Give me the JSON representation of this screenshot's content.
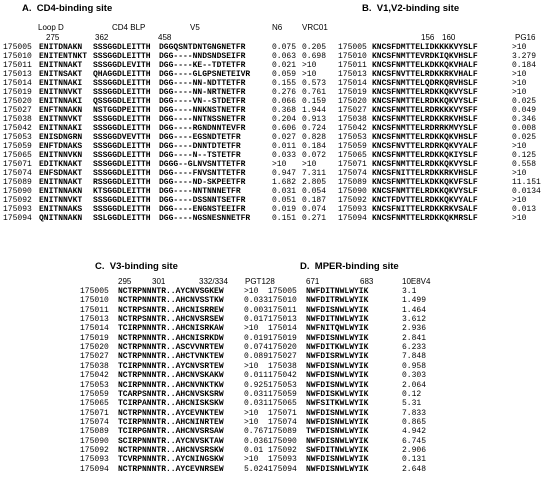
{
  "panels": [
    {
      "title": "A.  CD4-binding site",
      "regions": [
        "Loop D",
        "CD4 BLP",
        "V5"
      ],
      "positions": [
        "275",
        "362",
        "458"
      ],
      "antibodies": [
        "N6",
        "VRC01"
      ],
      "rows": [
        {
          "id": "175005",
          "seqs": [
            "ENITDNAKN",
            "SSSGGDLEITTH",
            "DGGQSNTDNTGNGNETFR"
          ],
          "values": [
            "0.075",
            "0.205"
          ]
        },
        {
          "id": "175010",
          "seqs": [
            "ENITENTNKT",
            "SSSGGDLEITTH",
            "DGG----NNDSNDSEIFR"
          ],
          "values": [
            "0.063",
            "0.698"
          ]
        },
        {
          "id": "175011",
          "seqs": [
            "ENITNNAKT",
            "SSSGGDLEVITH",
            "DGG----KE--TDTETFR"
          ],
          "values": [
            "0.021",
            ">10"
          ]
        },
        {
          "id": "175013",
          "seqs": [
            "ENITNSAKT",
            "QHAGGDLEITTH",
            "DGG----GLGPSNETEIVR"
          ],
          "values": [
            "0.059",
            ">10"
          ]
        },
        {
          "id": "175014",
          "seqs": [
            "ENITNNAKI",
            "SSSGGDLEITTH",
            "DGG----NN-NDTTETFR"
          ],
          "values": [
            "0.155",
            "0.573"
          ]
        },
        {
          "id": "175019",
          "seqs": [
            "ENITNNVKT",
            "SSSGGDLEITTH",
            "DGG----NN-NRTNETFR"
          ],
          "values": [
            "0.276",
            "0.761"
          ]
        },
        {
          "id": "175020",
          "seqs": [
            "ENITNNAKI",
            "QSSGGDLEITTH",
            "DGG----VN--STDETFR"
          ],
          "values": [
            "0.066",
            "0.159"
          ]
        },
        {
          "id": "175027",
          "seqs": [
            "ENFTNNAKN",
            "NSTGGDPEITTH",
            "DGG----NNKNSTNETFR"
          ],
          "values": [
            "0.368",
            "1.944"
          ]
        },
        {
          "id": "175038",
          "seqs": [
            "ENITNNVKT",
            "SSSGGDLEITTH",
            "DGG----NNTNSSNETFR"
          ],
          "values": [
            "0.204",
            "0.913"
          ]
        },
        {
          "id": "175042",
          "seqs": [
            "ENITNNAKI",
            "SSSGGDLEITTH",
            "DGG----RGNDNNTEVFR"
          ],
          "values": [
            "0.606",
            "0.724"
          ]
        },
        {
          "id": "175053",
          "seqs": [
            "ENISDNGRN",
            "SSSGGDVEVTTH",
            "DGG----EGSNDTETFR"
          ],
          "values": [
            "0.027",
            "0.828"
          ]
        },
        {
          "id": "175059",
          "seqs": [
            "ENFTDNAKS",
            "SSSGGDLEITTH",
            "DGG----DNNTDTETFR"
          ],
          "values": [
            "0.011",
            "0.184"
          ]
        },
        {
          "id": "175065",
          "seqs": [
            "ENITNNVKN",
            "SSSGGDLEITTH",
            "DGG----N--TSTETFR"
          ],
          "values": [
            "0.033",
            "0.072"
          ]
        },
        {
          "id": "175071",
          "seqs": [
            "EDITKNAKT",
            "SSSGGDLEITTH",
            "DGGG--GLNVSNTTETFR"
          ],
          "values": [
            ">10",
            ">10"
          ]
        },
        {
          "id": "175074",
          "seqs": [
            "ENFSDNAKT",
            "SSSGGDLEITTH",
            "DGG----FNVSNTTETFR"
          ],
          "values": [
            "0.947",
            "7.311"
          ]
        },
        {
          "id": "175089",
          "seqs": [
            "ENITNNAKT",
            "RSSGGDLEITTH",
            "DGG----ND-SKPEETFR"
          ],
          "values": [
            "1.682",
            "2.805"
          ]
        },
        {
          "id": "175090",
          "seqs": [
            "ENITNNAKN",
            "KTSGGDLEITTH",
            "DGG----NNTNNNETFR"
          ],
          "values": [
            "0.031",
            "0.054"
          ]
        },
        {
          "id": "175092",
          "seqs": [
            "ENITNNVKT",
            "SSSGGDLEITTH",
            "DGG----DSSNNTSETFR"
          ],
          "values": [
            "0.051",
            "0.187"
          ]
        },
        {
          "id": "175093",
          "seqs": [
            "ENITNNAKS",
            "SSSGGDLEITTH",
            "DGG----ENGNSTEEIFR"
          ],
          "values": [
            "0.019",
            "0.074"
          ]
        },
        {
          "id": "175094",
          "seqs": [
            "QNITNNAKN",
            "SSLGGDLEITTH",
            "DGG----NGSNESNNETFR"
          ],
          "values": [
            "0.151",
            "0.271"
          ]
        }
      ]
    },
    {
      "title": "B.  V1,V2-binding site",
      "positions": [
        "156",
        "160"
      ],
      "antibodies": [
        "PG16"
      ],
      "rows": [
        {
          "id": "175005",
          "seqs": [
            "KNCSFDMTTELIDKKKKVYSLF"
          ],
          "values": [
            ">10"
          ]
        },
        {
          "id": "175010",
          "seqs": [
            "KNCSFNMTTEVRDKIQKVHSLF"
          ],
          "values": [
            "3.279"
          ]
        },
        {
          "id": "175011",
          "seqs": [
            "KNCSFNMTTELKDKKQKVHALF"
          ],
          "values": [
            "0.184"
          ]
        },
        {
          "id": "175013",
          "seqs": [
            "KNCSFNVTTELRDKKRKVHALF"
          ],
          "values": [
            ">10"
          ]
        },
        {
          "id": "175014",
          "seqs": [
            "KNCSFNMTTELQDRKQRVHSLF"
          ],
          "values": [
            ">10"
          ]
        },
        {
          "id": "175019",
          "seqs": [
            "KNCSFNMTTELRDKKQKVYSLF"
          ],
          "values": [
            ">10"
          ]
        },
        {
          "id": "175020",
          "seqs": [
            "KNCSFNMTTELRDKKQKVYSLF"
          ],
          "values": [
            "0.025"
          ]
        },
        {
          "id": "175027",
          "seqs": [
            "KNCSFNMTTELRDRKKKVYSFF"
          ],
          "values": [
            "0.049"
          ]
        },
        {
          "id": "175038",
          "seqs": [
            "KNCSFNMTTELRDKKRKVHSLF"
          ],
          "values": [
            "0.346"
          ]
        },
        {
          "id": "175042",
          "seqs": [
            "KNCSFNMTTELRDRRKMVYSLF"
          ],
          "values": [
            "0.008"
          ]
        },
        {
          "id": "175053",
          "seqs": [
            "KNCSFNMTTELRDKKQKVHSLF"
          ],
          "values": [
            "0.025"
          ]
        },
        {
          "id": "175059",
          "seqs": [
            "KNCSFNVTTELRDRKQKVYALF"
          ],
          "values": [
            ">10"
          ]
        },
        {
          "id": "175065",
          "seqs": [
            "KNCSFNMTTELRDKKQKIYSLF"
          ],
          "values": [
            "0.125"
          ]
        },
        {
          "id": "175071",
          "seqs": [
            "KNCSFNMTTELRDKKQKVYSLF"
          ],
          "values": [
            "0.558"
          ]
        },
        {
          "id": "175074",
          "seqs": [
            "KNCSFNITTELRDKKRKVHSLF"
          ],
          "values": [
            ">10"
          ]
        },
        {
          "id": "175089",
          "seqs": [
            "KNCSFNMTTELKDKKQKVFSLF"
          ],
          "values": [
            "11.151"
          ]
        },
        {
          "id": "175090",
          "seqs": [
            "KNCSFNMTTELRDKKQKVYSLF"
          ],
          "values": [
            "0.0134"
          ]
        },
        {
          "id": "175092",
          "seqs": [
            "KNCTFDVTTELRDKKQKVYALF"
          ],
          "values": [
            ">10"
          ]
        },
        {
          "id": "175093",
          "seqs": [
            "KNCSFNITTELRDKKRKVSALF"
          ],
          "values": [
            "0.013"
          ]
        },
        {
          "id": "175094",
          "seqs": [
            "KNCSFNMTTELRDKKQKMRSLF"
          ],
          "values": [
            ">10"
          ]
        }
      ]
    },
    {
      "title": "C.  V3-binding site",
      "positions": [
        "295",
        "301",
        "332/334"
      ],
      "antibodies": [
        "PGT128"
      ],
      "rows": [
        {
          "id": "175005",
          "seqs": [
            "NCTRPNNNTR..AYCNVSGKEW"
          ],
          "values": [
            ">10"
          ]
        },
        {
          "id": "175010",
          "seqs": [
            "NCTRPNNNTR..AHCNVSSTKW"
          ],
          "values": [
            "0.033"
          ]
        },
        {
          "id": "175011",
          "seqs": [
            "NCTRPSNNTR..AHCNISRREW"
          ],
          "values": [
            "0.003"
          ]
        },
        {
          "id": "175013",
          "seqs": [
            "NCTRPSNNTR..AHCNVSRSEW"
          ],
          "values": [
            "0.017"
          ]
        },
        {
          "id": "175014",
          "seqs": [
            "TCIRPNNNTR..AHCNISRKAW"
          ],
          "values": [
            ">10"
          ]
        },
        {
          "id": "175019",
          "seqs": [
            "NCTRPNNNTR..AHCNISRKDW"
          ],
          "values": [
            "0.019"
          ]
        },
        {
          "id": "175020",
          "seqs": [
            "NCTRPNNNTR..ASCVVNRTEW"
          ],
          "values": [
            "0.074"
          ]
        },
        {
          "id": "175027",
          "seqs": [
            "NCTRPNNNTR..AHCTVNKTEW"
          ],
          "values": [
            "0.089"
          ]
        },
        {
          "id": "175038",
          "seqs": [
            "TCIRPNNNTR..AYCNVSRTEW"
          ],
          "values": [
            ">10"
          ]
        },
        {
          "id": "175042",
          "seqs": [
            "NCTRPNNNTR..AHCNVSKAKW"
          ],
          "values": [
            "0.011"
          ]
        },
        {
          "id": "175053",
          "seqs": [
            "NCIRPNNNTR..AHCNVNKTKW"
          ],
          "values": [
            "0.925"
          ]
        },
        {
          "id": "175059",
          "seqs": [
            "TCARPSNNTR..AHCNVSKSRW"
          ],
          "values": [
            "0.031"
          ]
        },
        {
          "id": "175065",
          "seqs": [
            "TCIRPANNTR..AHCNISKSKW"
          ],
          "values": [
            "0.031"
          ]
        },
        {
          "id": "175071",
          "seqs": [
            "NCTRPNNNTR..AYCEVNKTEW"
          ],
          "values": [
            ">10"
          ]
        },
        {
          "id": "175074",
          "seqs": [
            "TCIRPNNNTR..AHCNINRTEW"
          ],
          "values": [
            ">10"
          ]
        },
        {
          "id": "175089",
          "seqs": [
            "TCIRPGNNTR..AHCNVSRSAW"
          ],
          "values": [
            "0.767"
          ]
        },
        {
          "id": "175090",
          "seqs": [
            "SCIRPNNNTR..AYCNVSKTAW"
          ],
          "values": [
            "0.036"
          ]
        },
        {
          "id": "175092",
          "seqs": [
            "NCTRPNNNTR..AHCNVSRSKW"
          ],
          "values": [
            "0.01"
          ]
        },
        {
          "id": "175093",
          "seqs": [
            "TCVRPNNNTR..AYCNINGSKW"
          ],
          "values": [
            ">10"
          ]
        },
        {
          "id": "175094",
          "seqs": [
            "NCTRPNNNTR..AYCEVNRSEW"
          ],
          "values": [
            "5.024"
          ]
        }
      ]
    },
    {
      "title": "D.  MPER-binding site",
      "positions": [
        "671",
        "683"
      ],
      "antibodies": [
        "10E8V4"
      ],
      "rows": [
        {
          "id": "175005",
          "seqs": [
            "NWFDITNWLWYIK"
          ],
          "values": [
            "3.1"
          ]
        },
        {
          "id": "175010",
          "seqs": [
            "NWFDITRWLWYIK"
          ],
          "values": [
            "1.499"
          ]
        },
        {
          "id": "175011",
          "seqs": [
            "NWFDISNWLWYIK"
          ],
          "values": [
            "1.464"
          ]
        },
        {
          "id": "175013",
          "seqs": [
            "NWFDITNWLWYIK"
          ],
          "values": [
            "3.612"
          ]
        },
        {
          "id": "175014",
          "seqs": [
            "NWFNITQWLWYIK"
          ],
          "values": [
            "2.936"
          ]
        },
        {
          "id": "175019",
          "seqs": [
            "NWFDISNWLWYIK"
          ],
          "values": [
            "2.841"
          ]
        },
        {
          "id": "175020",
          "seqs": [
            "NWFDITKWLWYIK"
          ],
          "values": [
            "6.233"
          ]
        },
        {
          "id": "175027",
          "seqs": [
            "NWFDISRWLWYIK"
          ],
          "values": [
            "7.848"
          ]
        },
        {
          "id": "175038",
          "seqs": [
            "NWFDISNWLWYIK"
          ],
          "values": [
            "0.958"
          ]
        },
        {
          "id": "175042",
          "seqs": [
            "NWFDISNWLWYIK"
          ],
          "values": [
            "0.303"
          ]
        },
        {
          "id": "175053",
          "seqs": [
            "NWFDISNWLWYIK"
          ],
          "values": [
            "2.064"
          ]
        },
        {
          "id": "175059",
          "seqs": [
            "NWFDISKWLWYIK"
          ],
          "values": [
            "0.12"
          ]
        },
        {
          "id": "175065",
          "seqs": [
            "NWFSITKWLWYIK"
          ],
          "values": [
            "5.31"
          ]
        },
        {
          "id": "175071",
          "seqs": [
            "NWFDISNWLWYIK"
          ],
          "values": [
            "7.833"
          ]
        },
        {
          "id": "175074",
          "seqs": [
            "NWFDISNWLWYIK"
          ],
          "values": [
            "0.865"
          ]
        },
        {
          "id": "175089",
          "seqs": [
            "TWFDISNWLWYIK"
          ],
          "values": [
            "4.942"
          ]
        },
        {
          "id": "175090",
          "seqs": [
            "NWFDISNWLWYIK"
          ],
          "values": [
            "6.745"
          ]
        },
        {
          "id": "175092",
          "seqs": [
            "SWFDITNWLWYIK"
          ],
          "values": [
            "2.906"
          ]
        },
        {
          "id": "175093",
          "seqs": [
            "NWFDISNWLWYIK"
          ],
          "values": [
            "0.131"
          ]
        },
        {
          "id": "175094",
          "seqs": [
            "NWFDISNWLWYIK"
          ],
          "values": [
            "2.648"
          ]
        }
      ]
    }
  ]
}
